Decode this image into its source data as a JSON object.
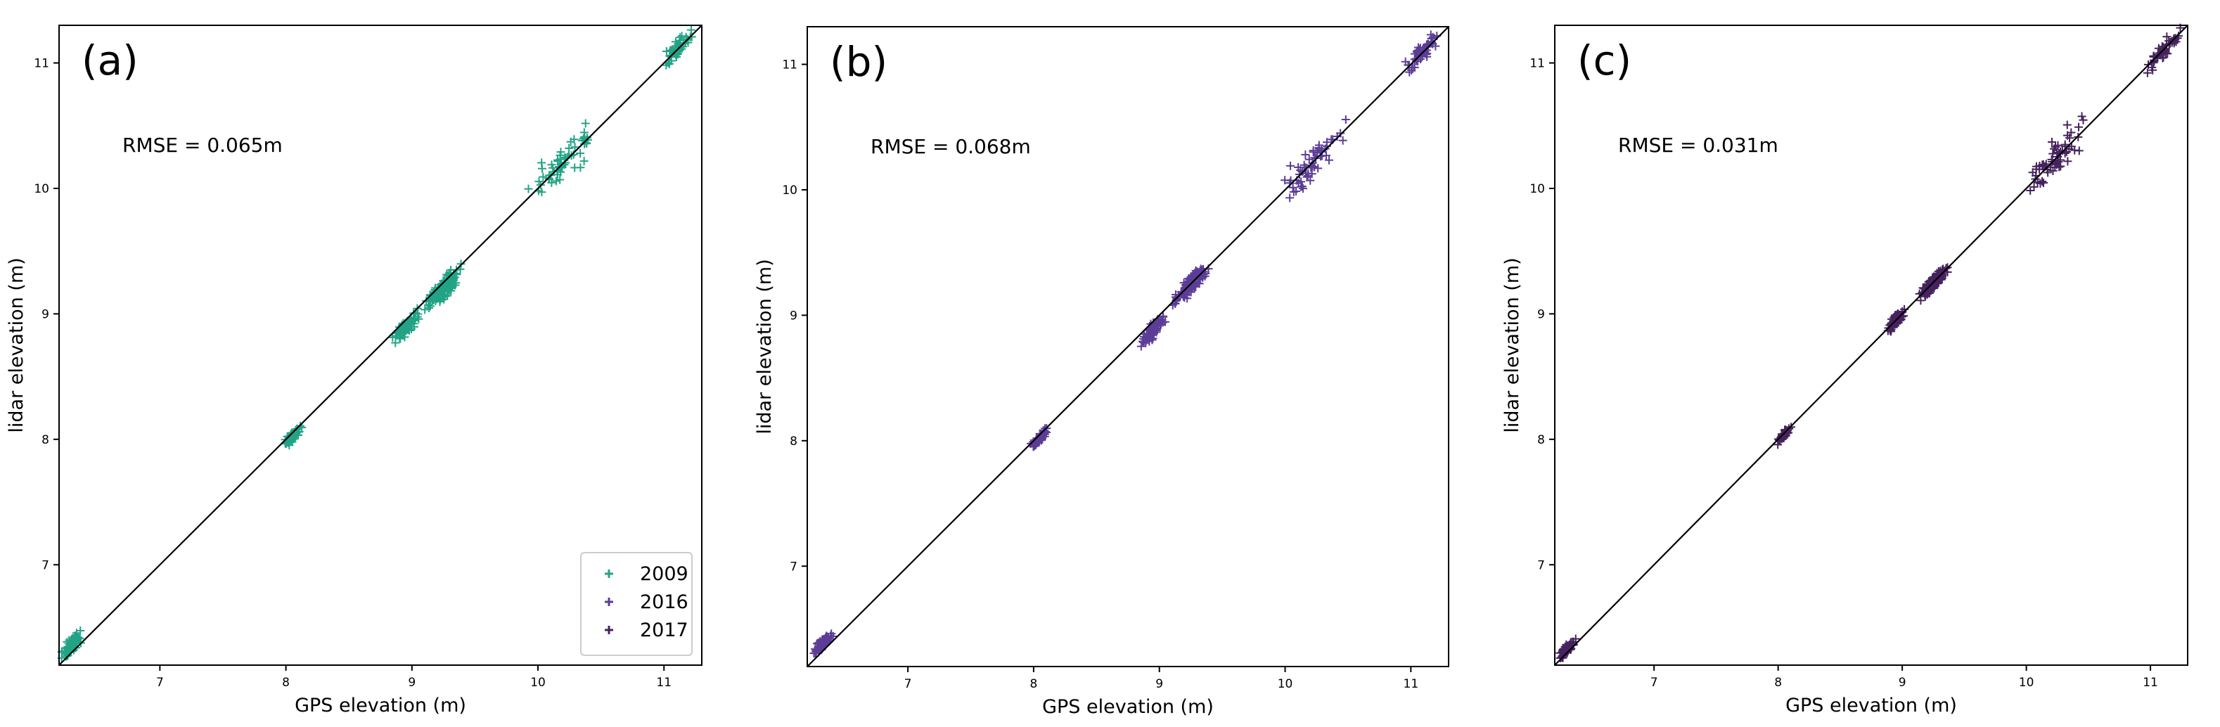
{
  "chart_data": [
    {
      "type": "scatter",
      "panel_label": "(a)",
      "rmse_text": "RMSE = 0.065m",
      "xlabel": "GPS elevation (m)",
      "ylabel": "lidar elevation (m)",
      "xlim": [
        6.2,
        11.3
      ],
      "ylim": [
        6.2,
        11.3
      ],
      "xticks": [
        "7",
        "8",
        "9",
        "10",
        "11"
      ],
      "yticks": [
        "7",
        "8",
        "9",
        "10",
        "11"
      ],
      "xtick_values": [
        7,
        8,
        9,
        10,
        11
      ],
      "ytick_values": [
        7,
        8,
        9,
        10,
        11
      ],
      "marker": "+",
      "series": [
        {
          "name": "2009",
          "color": "#22a386",
          "clusters": [
            {
              "x": 6.3,
              "y": 6.36,
              "sx": 0.07,
              "sy": 0.08,
              "n": 70
            },
            {
              "x": 8.05,
              "y": 8.02,
              "sx": 0.05,
              "sy": 0.05,
              "n": 60
            },
            {
              "x": 8.95,
              "y": 8.9,
              "sx": 0.08,
              "sy": 0.08,
              "n": 80
            },
            {
              "x": 9.25,
              "y": 9.2,
              "sx": 0.1,
              "sy": 0.12,
              "n": 130
            },
            {
              "x": 10.2,
              "y": 10.2,
              "sx": 0.2,
              "sy": 0.2,
              "n": 60
            },
            {
              "x": 11.1,
              "y": 11.1,
              "sx": 0.1,
              "sy": 0.1,
              "n": 50
            }
          ]
        }
      ],
      "legend": {
        "location": "lower-right",
        "entries": [
          {
            "label": "2009",
            "color": "#22a386"
          },
          {
            "label": "2016",
            "color": "#5c3d96"
          },
          {
            "label": "2017",
            "color": "#46225f"
          }
        ]
      },
      "reference_line": "1:1"
    },
    {
      "type": "scatter",
      "panel_label": "(b)",
      "rmse_text": "RMSE = 0.068m",
      "xlabel": "GPS elevation (m)",
      "ylabel": "lidar elevation (m)",
      "xlim": [
        6.2,
        11.3
      ],
      "ylim": [
        6.2,
        11.3
      ],
      "xticks": [
        "7",
        "8",
        "9",
        "10",
        "11"
      ],
      "yticks": [
        "7",
        "8",
        "9",
        "10",
        "11"
      ],
      "xtick_values": [
        7,
        8,
        9,
        10,
        11
      ],
      "ytick_values": [
        7,
        8,
        9,
        10,
        11
      ],
      "marker": "+",
      "series": [
        {
          "name": "2016",
          "color": "#5c3d96",
          "clusters": [
            {
              "x": 6.32,
              "y": 6.38,
              "sx": 0.06,
              "sy": 0.06,
              "n": 70
            },
            {
              "x": 8.05,
              "y": 8.02,
              "sx": 0.05,
              "sy": 0.05,
              "n": 60
            },
            {
              "x": 8.95,
              "y": 8.88,
              "sx": 0.07,
              "sy": 0.08,
              "n": 80
            },
            {
              "x": 9.25,
              "y": 9.25,
              "sx": 0.1,
              "sy": 0.1,
              "n": 130
            },
            {
              "x": 10.2,
              "y": 10.2,
              "sx": 0.2,
              "sy": 0.2,
              "n": 60
            },
            {
              "x": 11.1,
              "y": 11.1,
              "sx": 0.1,
              "sy": 0.1,
              "n": 50
            }
          ]
        }
      ],
      "reference_line": "1:1"
    },
    {
      "type": "scatter",
      "panel_label": "(c)",
      "rmse_text": "RMSE = 0.031m",
      "xlabel": "GPS elevation (m)",
      "ylabel": "lidar elevation (m)",
      "xlim": [
        6.2,
        11.3
      ],
      "ylim": [
        6.2,
        11.3
      ],
      "xticks": [
        "7",
        "8",
        "9",
        "10",
        "11"
      ],
      "yticks": [
        "7",
        "8",
        "9",
        "10",
        "11"
      ],
      "xtick_values": [
        7,
        8,
        9,
        10,
        11
      ],
      "ytick_values": [
        7,
        8,
        9,
        10,
        11
      ],
      "marker": "+",
      "series": [
        {
          "name": "2017",
          "color": "#46225f",
          "clusters": [
            {
              "x": 6.3,
              "y": 6.33,
              "sx": 0.05,
              "sy": 0.05,
              "n": 70
            },
            {
              "x": 8.05,
              "y": 8.04,
              "sx": 0.04,
              "sy": 0.04,
              "n": 50
            },
            {
              "x": 8.95,
              "y": 8.95,
              "sx": 0.05,
              "sy": 0.06,
              "n": 80
            },
            {
              "x": 9.25,
              "y": 9.25,
              "sx": 0.08,
              "sy": 0.08,
              "n": 130
            },
            {
              "x": 10.2,
              "y": 10.2,
              "sx": 0.2,
              "sy": 0.2,
              "n": 60
            },
            {
              "x": 11.1,
              "y": 11.1,
              "sx": 0.1,
              "sy": 0.1,
              "n": 50
            }
          ]
        }
      ],
      "reference_line": "1:1"
    }
  ]
}
